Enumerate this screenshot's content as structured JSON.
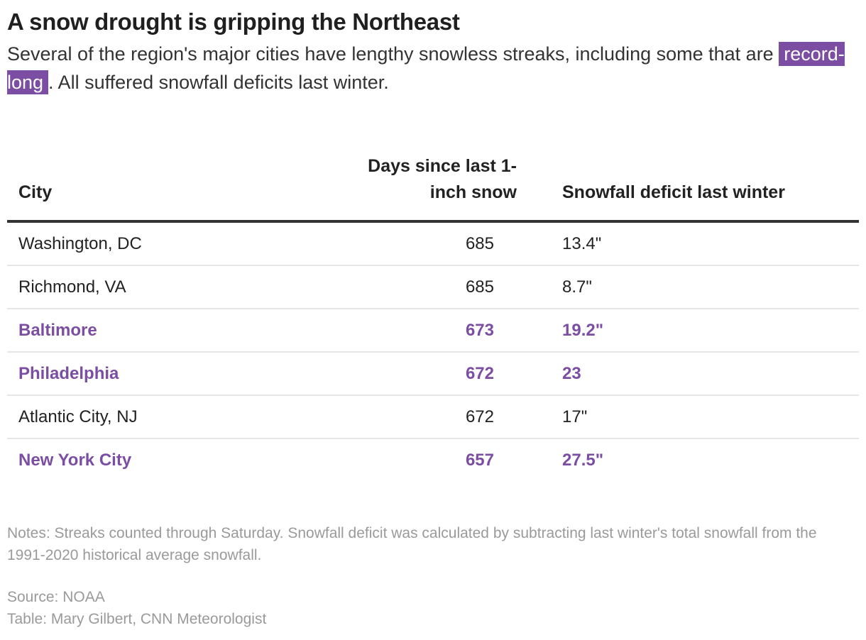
{
  "title": "A snow drought is gripping the Northeast",
  "subtitle": {
    "before": "Several of the region's major cities have lengthy snowless streaks, including some that are ",
    "highlight": "record-long",
    "after": ". All suffered snowfall deficits last winter."
  },
  "colors": {
    "highlight": "#7b4ea3",
    "text": "#222222",
    "muted": "#9a9a9a"
  },
  "chart_data": {
    "type": "table",
    "columns": [
      "City",
      "Days since last 1-inch snow",
      "Snowfall deficit last winter"
    ],
    "rows": [
      {
        "city": "Washington, DC",
        "days": "685",
        "deficit": "13.4\"",
        "highlight": false
      },
      {
        "city": "Richmond, VA",
        "days": "685",
        "deficit": "8.7\"",
        "highlight": false
      },
      {
        "city": "Baltimore",
        "days": "673",
        "deficit": "19.2\"",
        "highlight": true
      },
      {
        "city": "Philadelphia",
        "days": "672",
        "deficit": "23",
        "highlight": true
      },
      {
        "city": "Atlantic City, NJ",
        "days": "672",
        "deficit": "17\"",
        "highlight": false
      },
      {
        "city": "New York City",
        "days": "657",
        "deficit": "27.5\"",
        "highlight": true
      }
    ]
  },
  "notes": "Notes: Streaks counted through Saturday. Snowfall deficit was calculated by subtracting last winter's total snowfall from the 1991-2020 historical average snowfall.",
  "source": "Source: NOAA",
  "credit": "Table: Mary Gilbert, CNN Meteorologist"
}
